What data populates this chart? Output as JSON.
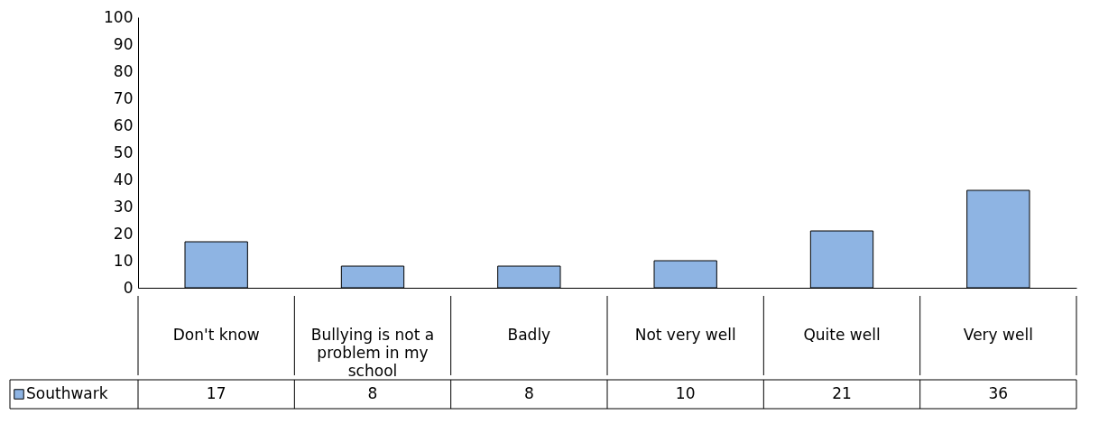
{
  "chart_data": {
    "type": "bar",
    "categories": [
      "Don't know",
      "Bullying is not a problem in my school",
      "Badly",
      "Not very well",
      "Quite well",
      "Very well"
    ],
    "series": [
      {
        "name": "Southwark",
        "color": "#8eb4e3",
        "values": [
          17,
          8,
          8,
          10,
          21,
          36
        ]
      }
    ],
    "ylim": [
      0,
      100
    ],
    "yticks": [
      0,
      10,
      20,
      30,
      40,
      50,
      60,
      70,
      80,
      90,
      100
    ],
    "grid": false,
    "legend": "bottom left",
    "data_labels": true
  }
}
